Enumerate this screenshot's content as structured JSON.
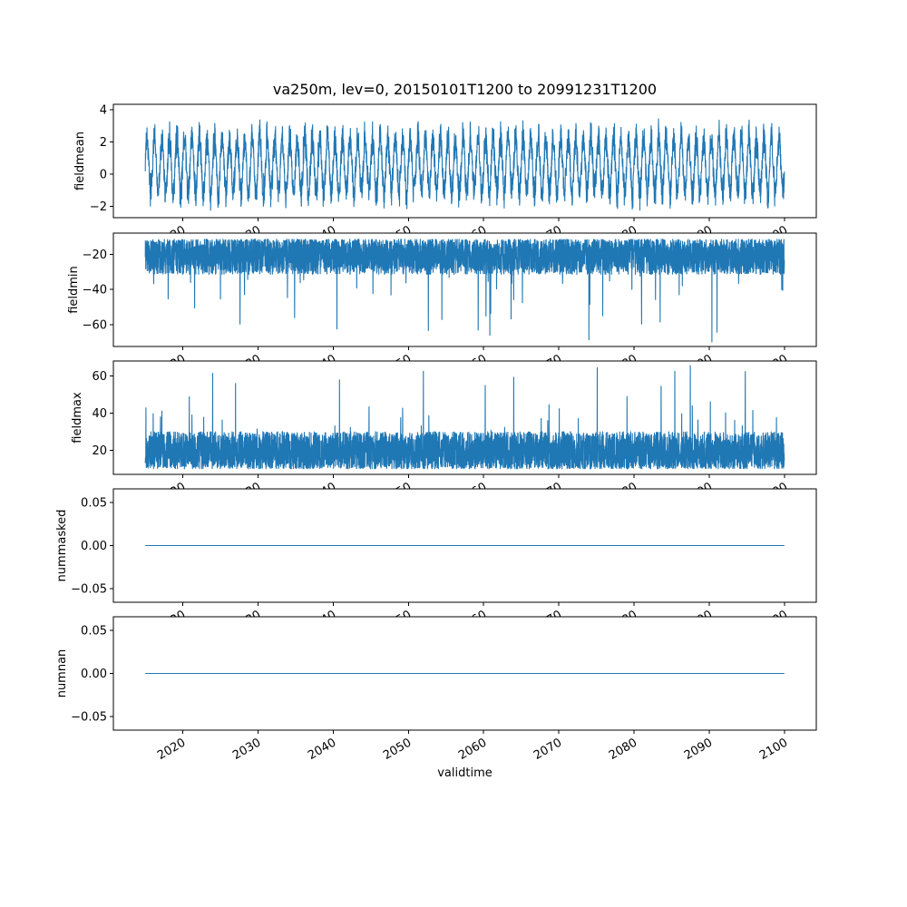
{
  "figure": {
    "background": "#ffffff",
    "frame_color": "#000000",
    "line_color": "#1f77b4"
  },
  "chart_data": {
    "type": "line",
    "title": "va250m, lev=0, 20150101T1200 to 20991231T1200",
    "xlabel": "validtime",
    "legend": "none",
    "grid": false,
    "xlim": [
      2010.8,
      2104.2
    ],
    "x_data_range": [
      2015.04,
      2099.96
    ],
    "x_ticks": [
      2020,
      2030,
      2040,
      2050,
      2060,
      2070,
      2080,
      2090,
      2100
    ],
    "x_tick_labels": [
      "2020",
      "2030",
      "2040",
      "2050",
      "2060",
      "2070",
      "2080",
      "2090",
      "2100"
    ],
    "subplots": [
      {
        "ylabel": "fieldmean",
        "ylim": [
          -2.7,
          4.35
        ],
        "yticks": [
          -2,
          0,
          2,
          4
        ],
        "ytick_labels": [
          "−2",
          "0",
          "2",
          "4"
        ],
        "summary": "Dense annual oscillation around ~0.5, envelope roughly -2.4 to 3.5, occasional peaks near 4",
        "series": {
          "kind": "seasonal",
          "seed": 7,
          "n": 4000,
          "mean": 0.55,
          "season_amp": 1.7,
          "noise": 0.75,
          "clip": [
            -2.45,
            4.05
          ]
        }
      },
      {
        "ylabel": "fieldmin",
        "ylim": [
          -72.5,
          -8
        ],
        "yticks": [
          -60,
          -40,
          -20
        ],
        "ytick_labels": [
          "−60",
          "−40",
          "−20"
        ],
        "summary": "Solid noisy band from about -12 down to -32 with frequent downward spikes to -45..-65 and one near -70 around 2048",
        "series": {
          "kind": "band-spikes",
          "seed": 13,
          "n": 5000,
          "base": -11.5,
          "band": 20,
          "band_pow": 1.2,
          "spike_p": 0.013,
          "spike_min": 8,
          "spike_max": 44,
          "spike_pow": 2.2,
          "dir": -1,
          "clip": [
            -70,
            -10
          ]
        }
      },
      {
        "ylabel": "fieldmax",
        "ylim": [
          7,
          68
        ],
        "yticks": [
          20,
          40,
          60
        ],
        "ytick_labels": [
          "20",
          "40",
          "60"
        ],
        "summary": "Solid noisy band from about 10 up to 30 with frequent upward spikes to 40..60 and one near 65 around 2047",
        "series": {
          "kind": "band-spikes",
          "seed": 29,
          "n": 5000,
          "base": 10,
          "band": 20,
          "band_pow": 1.2,
          "spike_p": 0.013,
          "spike_min": 8,
          "spike_max": 46,
          "spike_pow": 2.2,
          "dir": 1,
          "clip": [
            9,
            65.5
          ]
        }
      },
      {
        "ylabel": "nummasked",
        "ylim": [
          -0.066,
          0.066
        ],
        "yticks": [
          -0.05,
          0,
          0.05
        ],
        "ytick_labels": [
          "−0.05",
          "0.00",
          "0.05"
        ],
        "summary": "Constant zero for the whole period",
        "series": {
          "kind": "const",
          "value": 0
        }
      },
      {
        "ylabel": "numnan",
        "ylim": [
          -0.066,
          0.066
        ],
        "yticks": [
          -0.05,
          0,
          0.05
        ],
        "ytick_labels": [
          "−0.05",
          "0.00",
          "0.05"
        ],
        "summary": "Constant zero for the whole period",
        "series": {
          "kind": "const",
          "value": 0
        }
      }
    ]
  }
}
